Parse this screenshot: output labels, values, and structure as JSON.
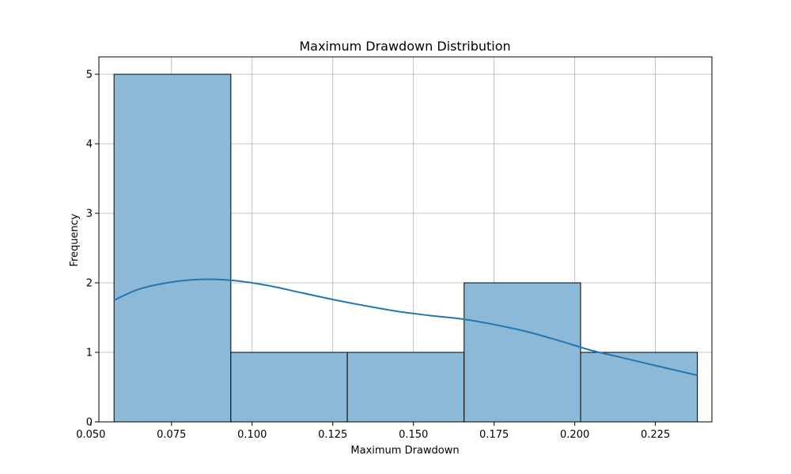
{
  "chart_data": {
    "type": "bar",
    "title": "Maximum Drawdown Distribution",
    "xlabel": "Maximum Drawdown",
    "ylabel": "Frequency",
    "xlim": [
      0.0525,
      0.2425
    ],
    "ylim": [
      0,
      5.25
    ],
    "x_ticks": [
      0.05,
      0.075,
      0.1,
      0.125,
      0.15,
      0.175,
      0.2,
      0.225
    ],
    "x_tick_labels": [
      "0.050",
      "0.075",
      "0.100",
      "0.125",
      "0.150",
      "0.175",
      "0.200",
      "0.225"
    ],
    "y_ticks": [
      0,
      1,
      2,
      3,
      4,
      5
    ],
    "y_tick_labels": [
      "0",
      "1",
      "2",
      "3",
      "4",
      "5"
    ],
    "grid": true,
    "bins": [
      {
        "x0": 0.0572,
        "x1": 0.0934,
        "count": 5
      },
      {
        "x0": 0.0934,
        "x1": 0.1295,
        "count": 1
      },
      {
        "x0": 0.1295,
        "x1": 0.1657,
        "count": 1
      },
      {
        "x0": 0.1657,
        "x1": 0.2018,
        "count": 2
      },
      {
        "x0": 0.2018,
        "x1": 0.238,
        "count": 1
      }
    ],
    "kde": {
      "x": [
        0.0572,
        0.065,
        0.075,
        0.085,
        0.095,
        0.105,
        0.115,
        0.125,
        0.135,
        0.145,
        0.155,
        0.165,
        0.175,
        0.185,
        0.195,
        0.205,
        0.215,
        0.225,
        0.238
      ],
      "y": [
        1.75,
        1.91,
        2.01,
        2.05,
        2.03,
        1.96,
        1.86,
        1.76,
        1.67,
        1.59,
        1.53,
        1.48,
        1.4,
        1.3,
        1.17,
        1.03,
        0.92,
        0.81,
        0.67
      ]
    },
    "colors": {
      "bar_fill": "#8db9d9",
      "bar_edge": "#000000",
      "kde_line": "#1f77b4",
      "grid": "#b0b0b0"
    }
  }
}
